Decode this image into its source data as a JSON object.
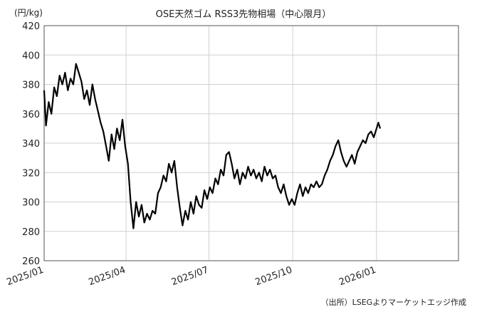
{
  "chart_data": {
    "type": "line",
    "title": "OSE天然ゴム RSS3先物相場（中心限月）",
    "unit_label": "(円/kg)",
    "source": "（出所）LSEGよりマーケットエッジ作成",
    "ylim": [
      260,
      420
    ],
    "yticks": [
      260,
      280,
      300,
      320,
      340,
      360,
      380,
      400,
      420
    ],
    "xlim": [
      "2025-01-01",
      "2026-04-01"
    ],
    "xticks": [
      {
        "date": "2025-01-01",
        "label": "2025/01"
      },
      {
        "date": "2025-04-01",
        "label": "2025/04"
      },
      {
        "date": "2025-07-01",
        "label": "2025/07"
      },
      {
        "date": "2025-10-01",
        "label": "2025/10"
      },
      {
        "date": "2026-01-01",
        "label": "2026/01"
      }
    ],
    "grid": true,
    "legend": "none",
    "series": [
      {
        "color": "#000000",
        "points": [
          [
            "2025-01-01",
            376
          ],
          [
            "2025-01-03",
            352
          ],
          [
            "2025-01-06",
            368
          ],
          [
            "2025-01-09",
            360
          ],
          [
            "2025-01-12",
            378
          ],
          [
            "2025-01-15",
            372
          ],
          [
            "2025-01-18",
            386
          ],
          [
            "2025-01-21",
            380
          ],
          [
            "2025-01-24",
            388
          ],
          [
            "2025-01-27",
            376
          ],
          [
            "2025-01-30",
            384
          ],
          [
            "2025-02-02",
            380
          ],
          [
            "2025-02-05",
            394
          ],
          [
            "2025-02-08",
            388
          ],
          [
            "2025-02-11",
            382
          ],
          [
            "2025-02-14",
            370
          ],
          [
            "2025-02-17",
            376
          ],
          [
            "2025-02-20",
            366
          ],
          [
            "2025-02-23",
            380
          ],
          [
            "2025-02-26",
            370
          ],
          [
            "2025-03-01",
            362
          ],
          [
            "2025-03-04",
            354
          ],
          [
            "2025-03-07",
            348
          ],
          [
            "2025-03-10",
            338
          ],
          [
            "2025-03-13",
            328
          ],
          [
            "2025-03-16",
            346
          ],
          [
            "2025-03-19",
            336
          ],
          [
            "2025-03-22",
            350
          ],
          [
            "2025-03-25",
            342
          ],
          [
            "2025-03-28",
            356
          ],
          [
            "2025-03-31",
            338
          ],
          [
            "2025-04-03",
            326
          ],
          [
            "2025-04-06",
            300
          ],
          [
            "2025-04-09",
            282
          ],
          [
            "2025-04-12",
            300
          ],
          [
            "2025-04-15",
            290
          ],
          [
            "2025-04-18",
            298
          ],
          [
            "2025-04-21",
            286
          ],
          [
            "2025-04-24",
            292
          ],
          [
            "2025-04-27",
            288
          ],
          [
            "2025-04-30",
            294
          ],
          [
            "2025-05-03",
            292
          ],
          [
            "2025-05-06",
            306
          ],
          [
            "2025-05-09",
            310
          ],
          [
            "2025-05-12",
            318
          ],
          [
            "2025-05-15",
            314
          ],
          [
            "2025-05-18",
            326
          ],
          [
            "2025-05-21",
            320
          ],
          [
            "2025-05-24",
            328
          ],
          [
            "2025-05-27",
            310
          ],
          [
            "2025-05-30",
            296
          ],
          [
            "2025-06-02",
            284
          ],
          [
            "2025-06-05",
            294
          ],
          [
            "2025-06-08",
            288
          ],
          [
            "2025-06-11",
            300
          ],
          [
            "2025-06-14",
            292
          ],
          [
            "2025-06-17",
            304
          ],
          [
            "2025-06-20",
            298
          ],
          [
            "2025-06-23",
            296
          ],
          [
            "2025-06-26",
            308
          ],
          [
            "2025-06-29",
            302
          ],
          [
            "2025-07-02",
            310
          ],
          [
            "2025-07-05",
            306
          ],
          [
            "2025-07-08",
            316
          ],
          [
            "2025-07-11",
            312
          ],
          [
            "2025-07-14",
            322
          ],
          [
            "2025-07-17",
            318
          ],
          [
            "2025-07-20",
            332
          ],
          [
            "2025-07-23",
            334
          ],
          [
            "2025-07-26",
            326
          ],
          [
            "2025-07-29",
            316
          ],
          [
            "2025-08-01",
            322
          ],
          [
            "2025-08-04",
            312
          ],
          [
            "2025-08-07",
            320
          ],
          [
            "2025-08-10",
            316
          ],
          [
            "2025-08-13",
            324
          ],
          [
            "2025-08-16",
            318
          ],
          [
            "2025-08-19",
            322
          ],
          [
            "2025-08-22",
            316
          ],
          [
            "2025-08-25",
            320
          ],
          [
            "2025-08-28",
            314
          ],
          [
            "2025-08-31",
            324
          ],
          [
            "2025-09-03",
            318
          ],
          [
            "2025-09-06",
            322
          ],
          [
            "2025-09-09",
            316
          ],
          [
            "2025-09-12",
            318
          ],
          [
            "2025-09-15",
            310
          ],
          [
            "2025-09-18",
            306
          ],
          [
            "2025-09-21",
            312
          ],
          [
            "2025-09-24",
            304
          ],
          [
            "2025-09-27",
            298
          ],
          [
            "2025-09-30",
            302
          ],
          [
            "2025-10-03",
            298
          ],
          [
            "2025-10-06",
            306
          ],
          [
            "2025-10-09",
            312
          ],
          [
            "2025-10-12",
            304
          ],
          [
            "2025-10-15",
            310
          ],
          [
            "2025-10-18",
            306
          ],
          [
            "2025-10-21",
            312
          ],
          [
            "2025-10-24",
            310
          ],
          [
            "2025-10-27",
            314
          ],
          [
            "2025-10-30",
            310
          ],
          [
            "2025-11-02",
            312
          ],
          [
            "2025-11-05",
            318
          ],
          [
            "2025-11-08",
            322
          ],
          [
            "2025-11-11",
            328
          ],
          [
            "2025-11-14",
            332
          ],
          [
            "2025-11-17",
            338
          ],
          [
            "2025-11-20",
            342
          ],
          [
            "2025-11-23",
            334
          ],
          [
            "2025-11-26",
            328
          ],
          [
            "2025-11-29",
            324
          ],
          [
            "2025-12-02",
            328
          ],
          [
            "2025-12-05",
            332
          ],
          [
            "2025-12-08",
            326
          ],
          [
            "2025-12-11",
            334
          ],
          [
            "2025-12-14",
            338
          ],
          [
            "2025-12-17",
            342
          ],
          [
            "2025-12-20",
            340
          ],
          [
            "2025-12-23",
            346
          ],
          [
            "2025-12-26",
            348
          ],
          [
            "2025-12-29",
            344
          ],
          [
            "2026-01-01",
            350
          ],
          [
            "2026-01-03",
            354
          ],
          [
            "2026-01-05",
            350
          ]
        ]
      }
    ]
  }
}
